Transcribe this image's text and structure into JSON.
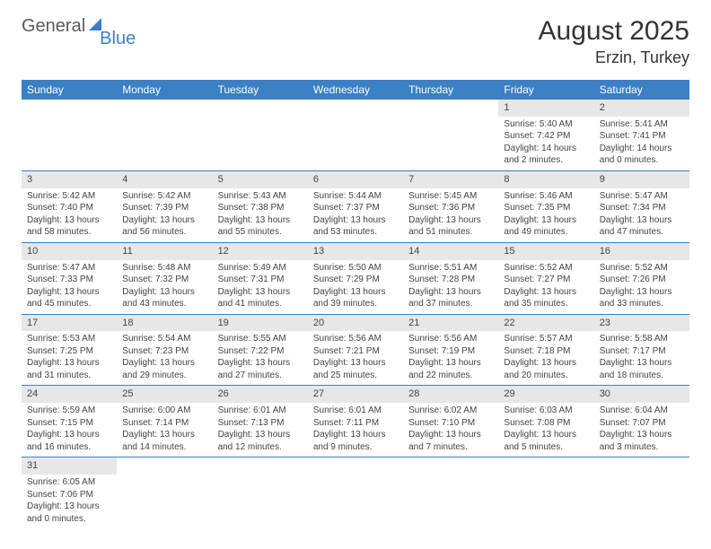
{
  "logo": {
    "part1": "General",
    "part2": "Blue"
  },
  "title": {
    "month": "August 2025",
    "location": "Erzin, Turkey"
  },
  "colors": {
    "header_bg": "#3b7fc4",
    "header_fg": "#ffffff",
    "daynum_bg": "#e7e7e7",
    "row_border": "#3b7fc4",
    "text": "#444444",
    "background": "#ffffff"
  },
  "typography": {
    "title_fontsize": 30,
    "location_fontsize": 18,
    "dayheader_fontsize": 12,
    "daynum_fontsize": 11,
    "body_fontsize": 10
  },
  "days_of_week": [
    "Sunday",
    "Monday",
    "Tuesday",
    "Wednesday",
    "Thursday",
    "Friday",
    "Saturday"
  ],
  "calendar": {
    "type": "table",
    "columns": 7,
    "rows": [
      [
        null,
        null,
        null,
        null,
        null,
        {
          "n": "1",
          "sunrise": "Sunrise: 5:40 AM",
          "sunset": "Sunset: 7:42 PM",
          "daylight": "Daylight: 14 hours and 2 minutes."
        },
        {
          "n": "2",
          "sunrise": "Sunrise: 5:41 AM",
          "sunset": "Sunset: 7:41 PM",
          "daylight": "Daylight: 14 hours and 0 minutes."
        }
      ],
      [
        {
          "n": "3",
          "sunrise": "Sunrise: 5:42 AM",
          "sunset": "Sunset: 7:40 PM",
          "daylight": "Daylight: 13 hours and 58 minutes."
        },
        {
          "n": "4",
          "sunrise": "Sunrise: 5:42 AM",
          "sunset": "Sunset: 7:39 PM",
          "daylight": "Daylight: 13 hours and 56 minutes."
        },
        {
          "n": "5",
          "sunrise": "Sunrise: 5:43 AM",
          "sunset": "Sunset: 7:38 PM",
          "daylight": "Daylight: 13 hours and 55 minutes."
        },
        {
          "n": "6",
          "sunrise": "Sunrise: 5:44 AM",
          "sunset": "Sunset: 7:37 PM",
          "daylight": "Daylight: 13 hours and 53 minutes."
        },
        {
          "n": "7",
          "sunrise": "Sunrise: 5:45 AM",
          "sunset": "Sunset: 7:36 PM",
          "daylight": "Daylight: 13 hours and 51 minutes."
        },
        {
          "n": "8",
          "sunrise": "Sunrise: 5:46 AM",
          "sunset": "Sunset: 7:35 PM",
          "daylight": "Daylight: 13 hours and 49 minutes."
        },
        {
          "n": "9",
          "sunrise": "Sunrise: 5:47 AM",
          "sunset": "Sunset: 7:34 PM",
          "daylight": "Daylight: 13 hours and 47 minutes."
        }
      ],
      [
        {
          "n": "10",
          "sunrise": "Sunrise: 5:47 AM",
          "sunset": "Sunset: 7:33 PM",
          "daylight": "Daylight: 13 hours and 45 minutes."
        },
        {
          "n": "11",
          "sunrise": "Sunrise: 5:48 AM",
          "sunset": "Sunset: 7:32 PM",
          "daylight": "Daylight: 13 hours and 43 minutes."
        },
        {
          "n": "12",
          "sunrise": "Sunrise: 5:49 AM",
          "sunset": "Sunset: 7:31 PM",
          "daylight": "Daylight: 13 hours and 41 minutes."
        },
        {
          "n": "13",
          "sunrise": "Sunrise: 5:50 AM",
          "sunset": "Sunset: 7:29 PM",
          "daylight": "Daylight: 13 hours and 39 minutes."
        },
        {
          "n": "14",
          "sunrise": "Sunrise: 5:51 AM",
          "sunset": "Sunset: 7:28 PM",
          "daylight": "Daylight: 13 hours and 37 minutes."
        },
        {
          "n": "15",
          "sunrise": "Sunrise: 5:52 AM",
          "sunset": "Sunset: 7:27 PM",
          "daylight": "Daylight: 13 hours and 35 minutes."
        },
        {
          "n": "16",
          "sunrise": "Sunrise: 5:52 AM",
          "sunset": "Sunset: 7:26 PM",
          "daylight": "Daylight: 13 hours and 33 minutes."
        }
      ],
      [
        {
          "n": "17",
          "sunrise": "Sunrise: 5:53 AM",
          "sunset": "Sunset: 7:25 PM",
          "daylight": "Daylight: 13 hours and 31 minutes."
        },
        {
          "n": "18",
          "sunrise": "Sunrise: 5:54 AM",
          "sunset": "Sunset: 7:23 PM",
          "daylight": "Daylight: 13 hours and 29 minutes."
        },
        {
          "n": "19",
          "sunrise": "Sunrise: 5:55 AM",
          "sunset": "Sunset: 7:22 PM",
          "daylight": "Daylight: 13 hours and 27 minutes."
        },
        {
          "n": "20",
          "sunrise": "Sunrise: 5:56 AM",
          "sunset": "Sunset: 7:21 PM",
          "daylight": "Daylight: 13 hours and 25 minutes."
        },
        {
          "n": "21",
          "sunrise": "Sunrise: 5:56 AM",
          "sunset": "Sunset: 7:19 PM",
          "daylight": "Daylight: 13 hours and 22 minutes."
        },
        {
          "n": "22",
          "sunrise": "Sunrise: 5:57 AM",
          "sunset": "Sunset: 7:18 PM",
          "daylight": "Daylight: 13 hours and 20 minutes."
        },
        {
          "n": "23",
          "sunrise": "Sunrise: 5:58 AM",
          "sunset": "Sunset: 7:17 PM",
          "daylight": "Daylight: 13 hours and 18 minutes."
        }
      ],
      [
        {
          "n": "24",
          "sunrise": "Sunrise: 5:59 AM",
          "sunset": "Sunset: 7:15 PM",
          "daylight": "Daylight: 13 hours and 16 minutes."
        },
        {
          "n": "25",
          "sunrise": "Sunrise: 6:00 AM",
          "sunset": "Sunset: 7:14 PM",
          "daylight": "Daylight: 13 hours and 14 minutes."
        },
        {
          "n": "26",
          "sunrise": "Sunrise: 6:01 AM",
          "sunset": "Sunset: 7:13 PM",
          "daylight": "Daylight: 13 hours and 12 minutes."
        },
        {
          "n": "27",
          "sunrise": "Sunrise: 6:01 AM",
          "sunset": "Sunset: 7:11 PM",
          "daylight": "Daylight: 13 hours and 9 minutes."
        },
        {
          "n": "28",
          "sunrise": "Sunrise: 6:02 AM",
          "sunset": "Sunset: 7:10 PM",
          "daylight": "Daylight: 13 hours and 7 minutes."
        },
        {
          "n": "29",
          "sunrise": "Sunrise: 6:03 AM",
          "sunset": "Sunset: 7:08 PM",
          "daylight": "Daylight: 13 hours and 5 minutes."
        },
        {
          "n": "30",
          "sunrise": "Sunrise: 6:04 AM",
          "sunset": "Sunset: 7:07 PM",
          "daylight": "Daylight: 13 hours and 3 minutes."
        }
      ],
      [
        {
          "n": "31",
          "sunrise": "Sunrise: 6:05 AM",
          "sunset": "Sunset: 7:06 PM",
          "daylight": "Daylight: 13 hours and 0 minutes."
        },
        null,
        null,
        null,
        null,
        null,
        null
      ]
    ]
  }
}
